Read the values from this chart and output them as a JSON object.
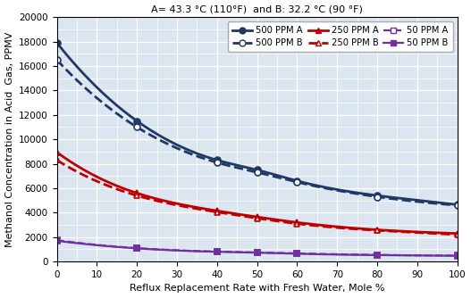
{
  "title": "A= 43.3 °C (110°F)  and B: 32.2 °C (90 °F)",
  "xlabel": "Reflux Replacement Rate with Fresh Water, Mole %",
  "ylabel": "Methanol Concentration in Acid  Gas, PPMV",
  "xlim": [
    0,
    100
  ],
  "ylim": [
    0,
    20000
  ],
  "yticks": [
    0,
    2000,
    4000,
    6000,
    8000,
    10000,
    12000,
    14000,
    16000,
    18000,
    20000
  ],
  "xticks": [
    0,
    10,
    20,
    30,
    40,
    50,
    60,
    70,
    80,
    90,
    100
  ],
  "series": {
    "500_PPM_A": {
      "x": [
        0,
        20,
        40,
        50,
        60,
        80,
        100
      ],
      "y": [
        17900,
        11500,
        8300,
        7500,
        6600,
        5400,
        4650
      ],
      "color": "#1F3864",
      "linestyle": "-",
      "marker": "o",
      "markerfacecolor": "#1F3864",
      "linewidth": 2.0,
      "label": "500 PPM A",
      "markersize": 5
    },
    "500_PPM_B": {
      "x": [
        0,
        20,
        40,
        50,
        60,
        80,
        100
      ],
      "y": [
        16500,
        11000,
        8100,
        7300,
        6500,
        5300,
        4600
      ],
      "color": "#1F3864",
      "linestyle": "--",
      "marker": "o",
      "markerfacecolor": "white",
      "linewidth": 2.0,
      "label": "500 PPM B",
      "markersize": 5
    },
    "250_PPM_A": {
      "x": [
        0,
        20,
        40,
        50,
        60,
        80,
        100
      ],
      "y": [
        8950,
        5600,
        4150,
        3650,
        3200,
        2600,
        2300
      ],
      "color": "#C00000",
      "linestyle": "-",
      "marker": "^",
      "markerfacecolor": "#C00000",
      "linewidth": 2.0,
      "label": "250 PPM A",
      "markersize": 5
    },
    "250_PPM_B": {
      "x": [
        0,
        20,
        40,
        50,
        60,
        80,
        100
      ],
      "y": [
        8300,
        5400,
        4050,
        3550,
        3100,
        2550,
        2200
      ],
      "color": "#C00000",
      "linestyle": "--",
      "marker": "^",
      "markerfacecolor": "white",
      "linewidth": 2.0,
      "label": "250 PPM B",
      "markersize": 5
    },
    "50_PPM_A": {
      "x": [
        0,
        20,
        40,
        50,
        60,
        80,
        100
      ],
      "y": [
        1750,
        1100,
        820,
        750,
        670,
        545,
        490
      ],
      "color": "#7030A0",
      "linestyle": "--",
      "marker": "s",
      "markerfacecolor": "white",
      "linewidth": 1.6,
      "label": "50 PPM A",
      "markersize": 4
    },
    "50_PPM_B": {
      "x": [
        0,
        20,
        40,
        50,
        60,
        80,
        100
      ],
      "y": [
        1700,
        1080,
        800,
        730,
        640,
        530,
        470
      ],
      "color": "#7030A0",
      "linestyle": "-",
      "marker": "s",
      "markerfacecolor": "#7030A0",
      "linewidth": 1.6,
      "label": "50 PPM B",
      "markersize": 4
    }
  },
  "background_color": "#DCE6F1",
  "grid_color": "white",
  "title_fontsize": 8.0,
  "axis_label_fontsize": 8.0,
  "tick_fontsize": 7.5,
  "legend_fontsize": 7.2,
  "figsize": [
    5.27,
    3.34
  ],
  "dpi": 100
}
